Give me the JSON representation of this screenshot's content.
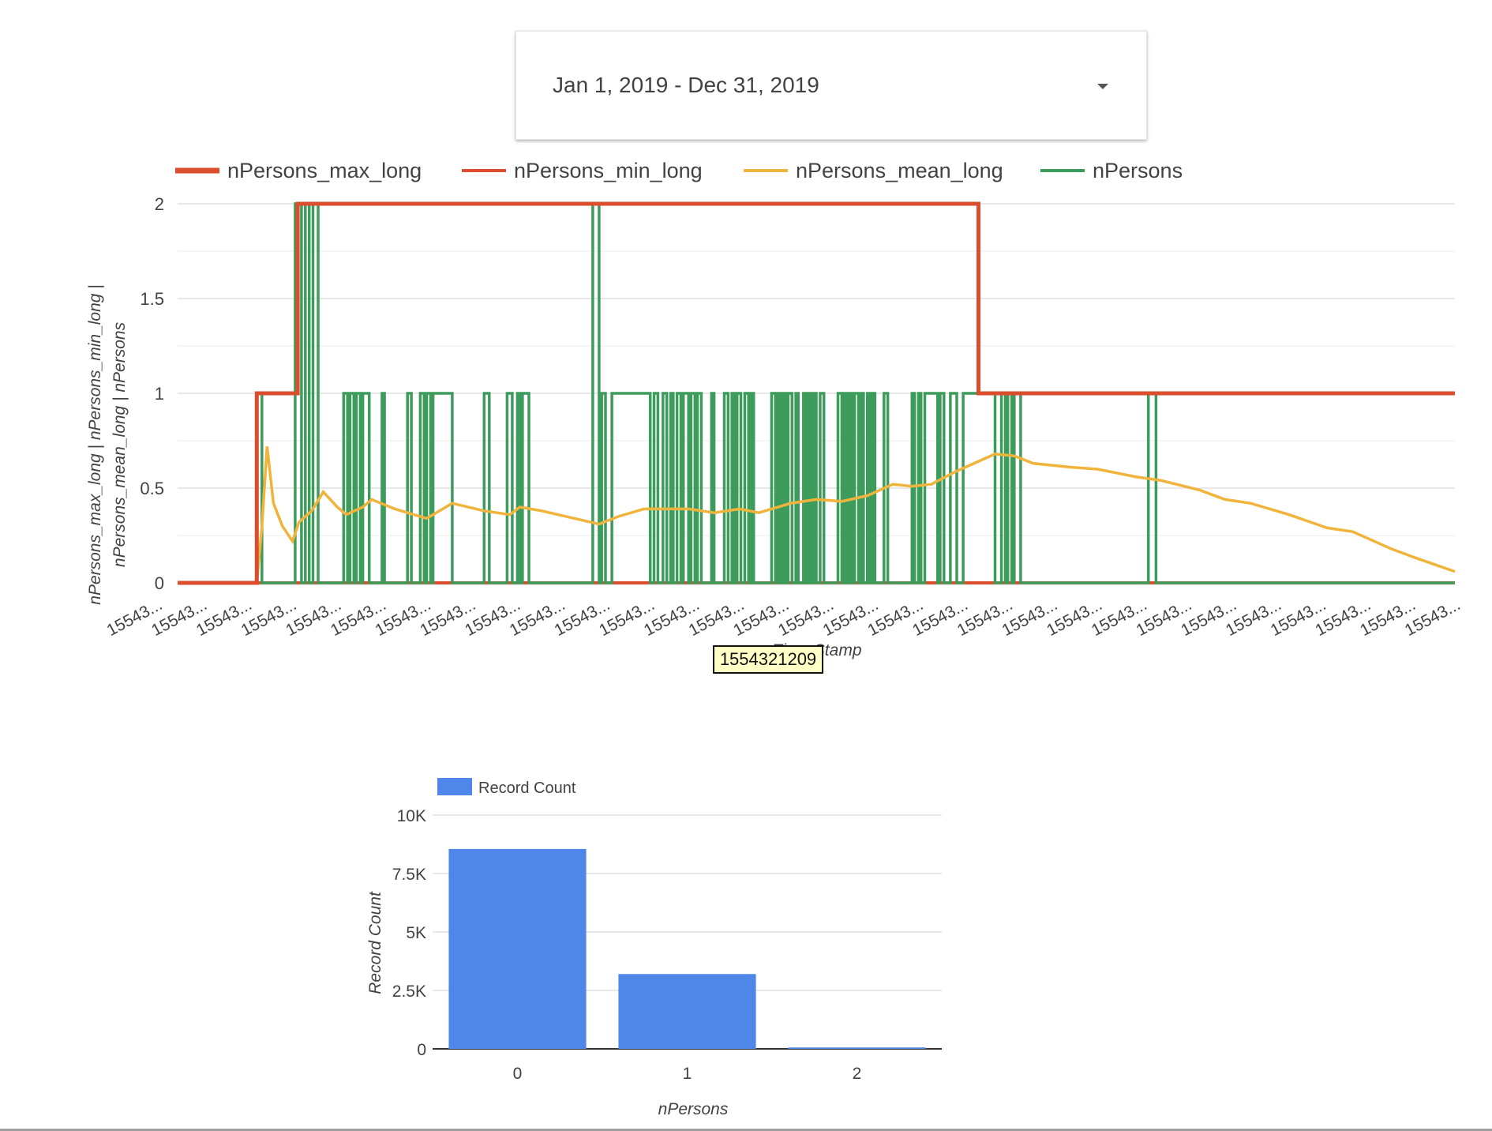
{
  "date_range": {
    "label": "Jan 1, 2019 - Dec 31, 2019",
    "icon": "dropdown-caret-icon"
  },
  "chart_data": [
    {
      "type": "line",
      "xlabel": "Time Stamp",
      "ylabel_line1": "nPersons_max_long | nPersons_min_long |",
      "ylabel_line2": "nPersons_mean_long | nPersons",
      "ylim": [
        0,
        2
      ],
      "y_ticks": [
        "0",
        "0.5",
        "1",
        "1.5",
        "2"
      ],
      "x_tick_label": "15543...",
      "x_tick_count": 30,
      "legend_position": "top",
      "tooltip": "1554321209",
      "series": [
        {
          "name": "nPersons_max_long",
          "color": "#db4e2d",
          "points": [
            [
              0,
              0
            ],
            [
              0.062,
              0
            ],
            [
              0.062,
              1
            ],
            [
              0.094,
              1
            ],
            [
              0.094,
              2
            ],
            [
              0.627,
              2
            ],
            [
              0.627,
              1
            ],
            [
              1,
              1
            ]
          ]
        },
        {
          "name": "nPersons_min_long",
          "color": "#db4e2d",
          "points": [
            [
              0,
              0
            ],
            [
              1,
              0
            ]
          ]
        },
        {
          "name": "nPersons_mean_long",
          "color": "#f0b43c",
          "points": [
            [
              0,
              0
            ],
            [
              0.062,
              0
            ],
            [
              0.066,
              0.3
            ],
            [
              0.07,
              0.72
            ],
            [
              0.075,
              0.42
            ],
            [
              0.082,
              0.3
            ],
            [
              0.09,
              0.22
            ],
            [
              0.095,
              0.32
            ],
            [
              0.105,
              0.38
            ],
            [
              0.114,
              0.48
            ],
            [
              0.125,
              0.4
            ],
            [
              0.132,
              0.36
            ],
            [
              0.145,
              0.4
            ],
            [
              0.152,
              0.44
            ],
            [
              0.17,
              0.39
            ],
            [
              0.195,
              0.34
            ],
            [
              0.215,
              0.42
            ],
            [
              0.24,
              0.38
            ],
            [
              0.26,
              0.36
            ],
            [
              0.268,
              0.4
            ],
            [
              0.285,
              0.38
            ],
            [
              0.33,
              0.31
            ],
            [
              0.345,
              0.35
            ],
            [
              0.365,
              0.39
            ],
            [
              0.4,
              0.39
            ],
            [
              0.42,
              0.37
            ],
            [
              0.44,
              0.39
            ],
            [
              0.455,
              0.37
            ],
            [
              0.48,
              0.42
            ],
            [
              0.5,
              0.44
            ],
            [
              0.52,
              0.43
            ],
            [
              0.54,
              0.46
            ],
            [
              0.56,
              0.52
            ],
            [
              0.575,
              0.51
            ],
            [
              0.59,
              0.52
            ],
            [
              0.61,
              0.59
            ],
            [
              0.63,
              0.65
            ],
            [
              0.64,
              0.68
            ],
            [
              0.655,
              0.67
            ],
            [
              0.67,
              0.63
            ],
            [
              0.7,
              0.61
            ],
            [
              0.72,
              0.6
            ],
            [
              0.75,
              0.56
            ],
            [
              0.77,
              0.54
            ],
            [
              0.8,
              0.49
            ],
            [
              0.82,
              0.44
            ],
            [
              0.84,
              0.42
            ],
            [
              0.87,
              0.36
            ],
            [
              0.9,
              0.29
            ],
            [
              0.92,
              0.27
            ],
            [
              0.95,
              0.18
            ],
            [
              0.97,
              0.13
            ],
            [
              1.0,
              0.06
            ],
            [
              1.02,
              0.01
            ],
            [
              1.2,
              0.01
            ]
          ]
        },
        {
          "name": "nPersons",
          "color": "#3d9c5b",
          "pulses": [
            [
              0.062,
              0.066,
              1
            ],
            [
              0.092,
              0.097,
              2
            ],
            [
              0.1,
              0.103,
              2
            ],
            [
              0.106,
              0.11,
              2
            ],
            [
              0.13,
              0.133,
              1
            ],
            [
              0.135,
              0.138,
              1
            ],
            [
              0.14,
              0.143,
              1
            ],
            [
              0.145,
              0.15,
              1
            ],
            [
              0.16,
              0.162,
              1
            ],
            [
              0.18,
              0.183,
              1
            ],
            [
              0.19,
              0.193,
              1
            ],
            [
              0.195,
              0.198,
              1
            ],
            [
              0.2,
              0.215,
              1
            ],
            [
              0.24,
              0.244,
              1
            ],
            [
              0.258,
              0.262,
              1
            ],
            [
              0.266,
              0.268,
              1
            ],
            [
              0.27,
              0.275,
              1
            ],
            [
              0.325,
              0.33,
              2
            ],
            [
              0.332,
              0.335,
              1
            ],
            [
              0.34,
              0.37,
              1
            ],
            [
              0.373,
              0.376,
              1
            ],
            [
              0.38,
              0.383,
              1
            ],
            [
              0.386,
              0.388,
              1
            ],
            [
              0.391,
              0.394,
              1
            ],
            [
              0.396,
              0.4,
              1
            ],
            [
              0.402,
              0.405,
              1
            ],
            [
              0.407,
              0.41,
              1
            ],
            [
              0.418,
              0.42,
              1
            ],
            [
              0.428,
              0.431,
              1
            ],
            [
              0.434,
              0.436,
              1
            ],
            [
              0.438,
              0.441,
              1
            ],
            [
              0.444,
              0.447,
              1
            ],
            [
              0.449,
              0.451,
              1
            ],
            [
              0.465,
              0.468,
              1
            ],
            [
              0.47,
              0.472,
              1
            ],
            [
              0.474,
              0.476,
              1
            ],
            [
              0.478,
              0.481,
              1
            ],
            [
              0.484,
              0.486,
              1
            ],
            [
              0.49,
              0.492,
              1
            ],
            [
              0.494,
              0.496,
              1
            ],
            [
              0.498,
              0.5,
              1
            ],
            [
              0.503,
              0.506,
              1
            ],
            [
              0.517,
              0.52,
              1
            ],
            [
              0.522,
              0.524,
              1
            ],
            [
              0.526,
              0.528,
              1
            ],
            [
              0.53,
              0.533,
              1
            ],
            [
              0.535,
              0.537,
              1
            ],
            [
              0.54,
              0.542,
              1
            ],
            [
              0.544,
              0.546,
              1
            ],
            [
              0.553,
              0.556,
              1
            ],
            [
              0.575,
              0.577,
              1
            ],
            [
              0.58,
              0.582,
              1
            ],
            [
              0.585,
              0.595,
              1
            ],
            [
              0.597,
              0.6,
              1
            ],
            [
              0.605,
              0.61,
              1
            ],
            [
              0.615,
              0.64,
              1
            ],
            [
              0.645,
              0.648,
              1
            ],
            [
              0.65,
              0.653,
              1
            ],
            [
              0.655,
              0.66,
              1
            ],
            [
              0.76,
              0.766,
              1
            ]
          ]
        }
      ]
    },
    {
      "type": "bar",
      "categories": [
        "0",
        "1",
        "2"
      ],
      "values": [
        8550,
        3200,
        60
      ],
      "xlabel": "nPersons",
      "ylabel": "Record Count",
      "ylim": [
        0,
        10000
      ],
      "y_ticks": [
        "0",
        "2.5K",
        "5K",
        "7.5K",
        "10K"
      ],
      "legend_position": "top-left",
      "series": [
        {
          "name": "Record Count",
          "color": "#4e86e9"
        }
      ]
    }
  ]
}
